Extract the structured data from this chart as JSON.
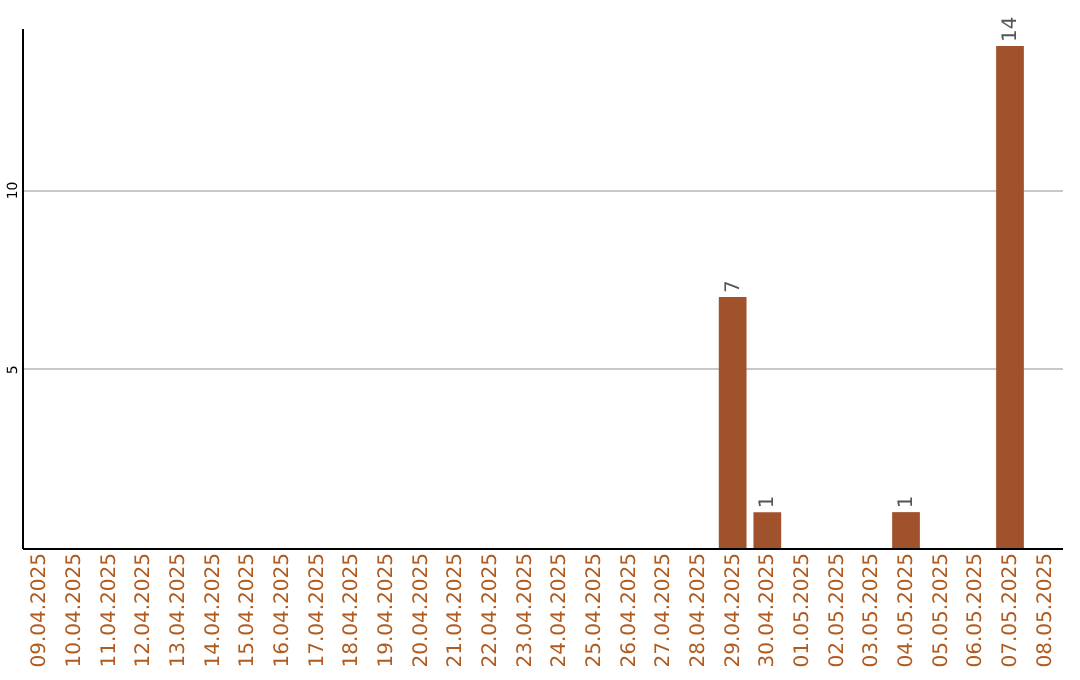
{
  "chart_data": {
    "type": "bar",
    "categories": [
      "09.04.2025",
      "10.04.2025",
      "11.04.2025",
      "12.04.2025",
      "13.04.2025",
      "14.04.2025",
      "15.04.2025",
      "16.04.2025",
      "17.04.2025",
      "18.04.2025",
      "19.04.2025",
      "20.04.2025",
      "21.04.2025",
      "22.04.2025",
      "23.04.2025",
      "24.04.2025",
      "25.04.2025",
      "26.04.2025",
      "27.04.2025",
      "28.04.2025",
      "29.04.2025",
      "30.04.2025",
      "01.05.2025",
      "02.05.2025",
      "03.05.2025",
      "04.05.2025",
      "05.05.2025",
      "06.05.2025",
      "07.05.2025",
      "08.05.2025"
    ],
    "values": [
      0,
      0,
      0,
      0,
      0,
      0,
      0,
      0,
      0,
      0,
      0,
      0,
      0,
      0,
      0,
      0,
      0,
      0,
      0,
      0,
      7,
      1,
      0,
      0,
      0,
      1,
      0,
      0,
      14,
      0
    ],
    "value_labels": [
      null,
      null,
      null,
      null,
      null,
      null,
      null,
      null,
      null,
      null,
      null,
      null,
      null,
      null,
      null,
      null,
      null,
      null,
      null,
      null,
      "7",
      "1",
      null,
      null,
      null,
      "1",
      null,
      null,
      "14",
      null
    ],
    "color": "#a0522d",
    "ylim": [
      0,
      14.5
    ],
    "yticks": [
      5,
      10
    ],
    "grid": "y"
  }
}
